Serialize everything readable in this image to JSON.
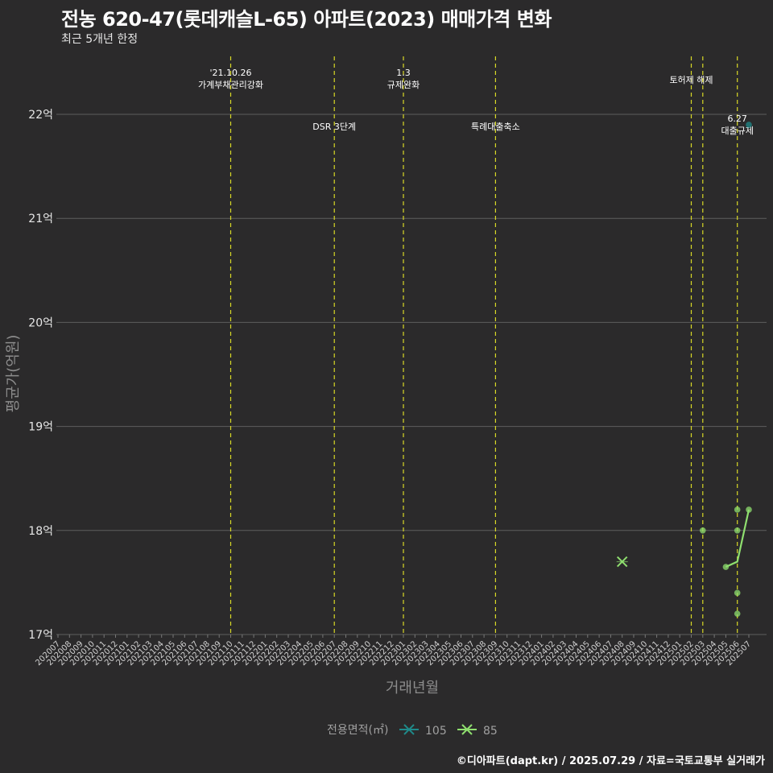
{
  "title": "전농 620-47(롯데캐슬L-65) 아파트(2023) 매매가격 변화",
  "subtitle": "최근 5개년 한정",
  "footer": "©디아파트(dapt.kr) / 2025.07.29 / 자료=국토교통부 실거래가",
  "colors": {
    "background": "#2b2a2b",
    "grid": "#5e5e5e",
    "event_line": "#d9d926",
    "series_105": "#1f8a8a",
    "series_85": "#8fdf6f"
  },
  "chart_data": {
    "type": "line",
    "title": "전농 620-47(롯데캐슬L-65) 아파트(2023) 매매가격 변화",
    "xlabel": "거래년월",
    "ylabel": "평균가(억원)",
    "ylim": [
      17,
      22.5
    ],
    "y_ticks": [
      {
        "value": 17,
        "label": "17억"
      },
      {
        "value": 18,
        "label": "18억"
      },
      {
        "value": 19,
        "label": "19억"
      },
      {
        "value": 20,
        "label": "20억"
      },
      {
        "value": 21,
        "label": "21억"
      },
      {
        "value": 22,
        "label": "22억"
      }
    ],
    "categories": [
      "202007",
      "202008",
      "202009",
      "202010",
      "202011",
      "202012",
      "202101",
      "202102",
      "202103",
      "202104",
      "202105",
      "202106",
      "202107",
      "202108",
      "202109",
      "202110",
      "202111",
      "202112",
      "202201",
      "202202",
      "202203",
      "202204",
      "202205",
      "202206",
      "202207",
      "202208",
      "202209",
      "202210",
      "202211",
      "202212",
      "202301",
      "202302",
      "202303",
      "202304",
      "202305",
      "202306",
      "202307",
      "202308",
      "202309",
      "202310",
      "202311",
      "202312",
      "202401",
      "202402",
      "202403",
      "202404",
      "202405",
      "202406",
      "202407",
      "202408",
      "202409",
      "202410",
      "202411",
      "202412",
      "202501",
      "202502",
      "202503",
      "202504",
      "202505",
      "202506",
      "202507"
    ],
    "events": [
      {
        "month": "202110",
        "label": "'21.10.26\n가계부채관리강화",
        "row": "top"
      },
      {
        "month": "202207",
        "label": "DSR 3단계",
        "row": "low"
      },
      {
        "month": "202301",
        "label": "1.3\n규제완화",
        "row": "top"
      },
      {
        "month": "202309",
        "label": "특례대출축소",
        "row": "low"
      },
      {
        "month": "202502",
        "label": "토허제 해제",
        "row": "top2"
      },
      {
        "month": "202503",
        "label": "",
        "row": "none"
      },
      {
        "month": "202506",
        "label": "6.27\n대출규제",
        "row": "mid"
      }
    ],
    "series": [
      {
        "name": "105",
        "color": "#1f8a8a",
        "line": [],
        "points": [
          {
            "x": "202507",
            "y": 21.9
          }
        ]
      },
      {
        "name": "85",
        "color": "#8fdf6f",
        "line": [
          {
            "x": "202505",
            "y": 17.65
          },
          {
            "x": "202506",
            "y": 17.7
          },
          {
            "x": "202507",
            "y": 18.2
          }
        ],
        "points": [
          {
            "x": "202408",
            "y": 17.7,
            "marker": "x"
          },
          {
            "x": "202503",
            "y": 18.0
          },
          {
            "x": "202505",
            "y": 17.65
          },
          {
            "x": "202506",
            "y": 18.2
          },
          {
            "x": "202506",
            "y": 18.0
          },
          {
            "x": "202506",
            "y": 17.4
          },
          {
            "x": "202506",
            "y": 17.2
          },
          {
            "x": "202507",
            "y": 18.2
          }
        ]
      }
    ]
  },
  "legend": {
    "title": "전용면적(㎡)",
    "items": [
      {
        "label": "105",
        "color": "#1f8a8a"
      },
      {
        "label": "85",
        "color": "#8fdf6f"
      }
    ]
  }
}
